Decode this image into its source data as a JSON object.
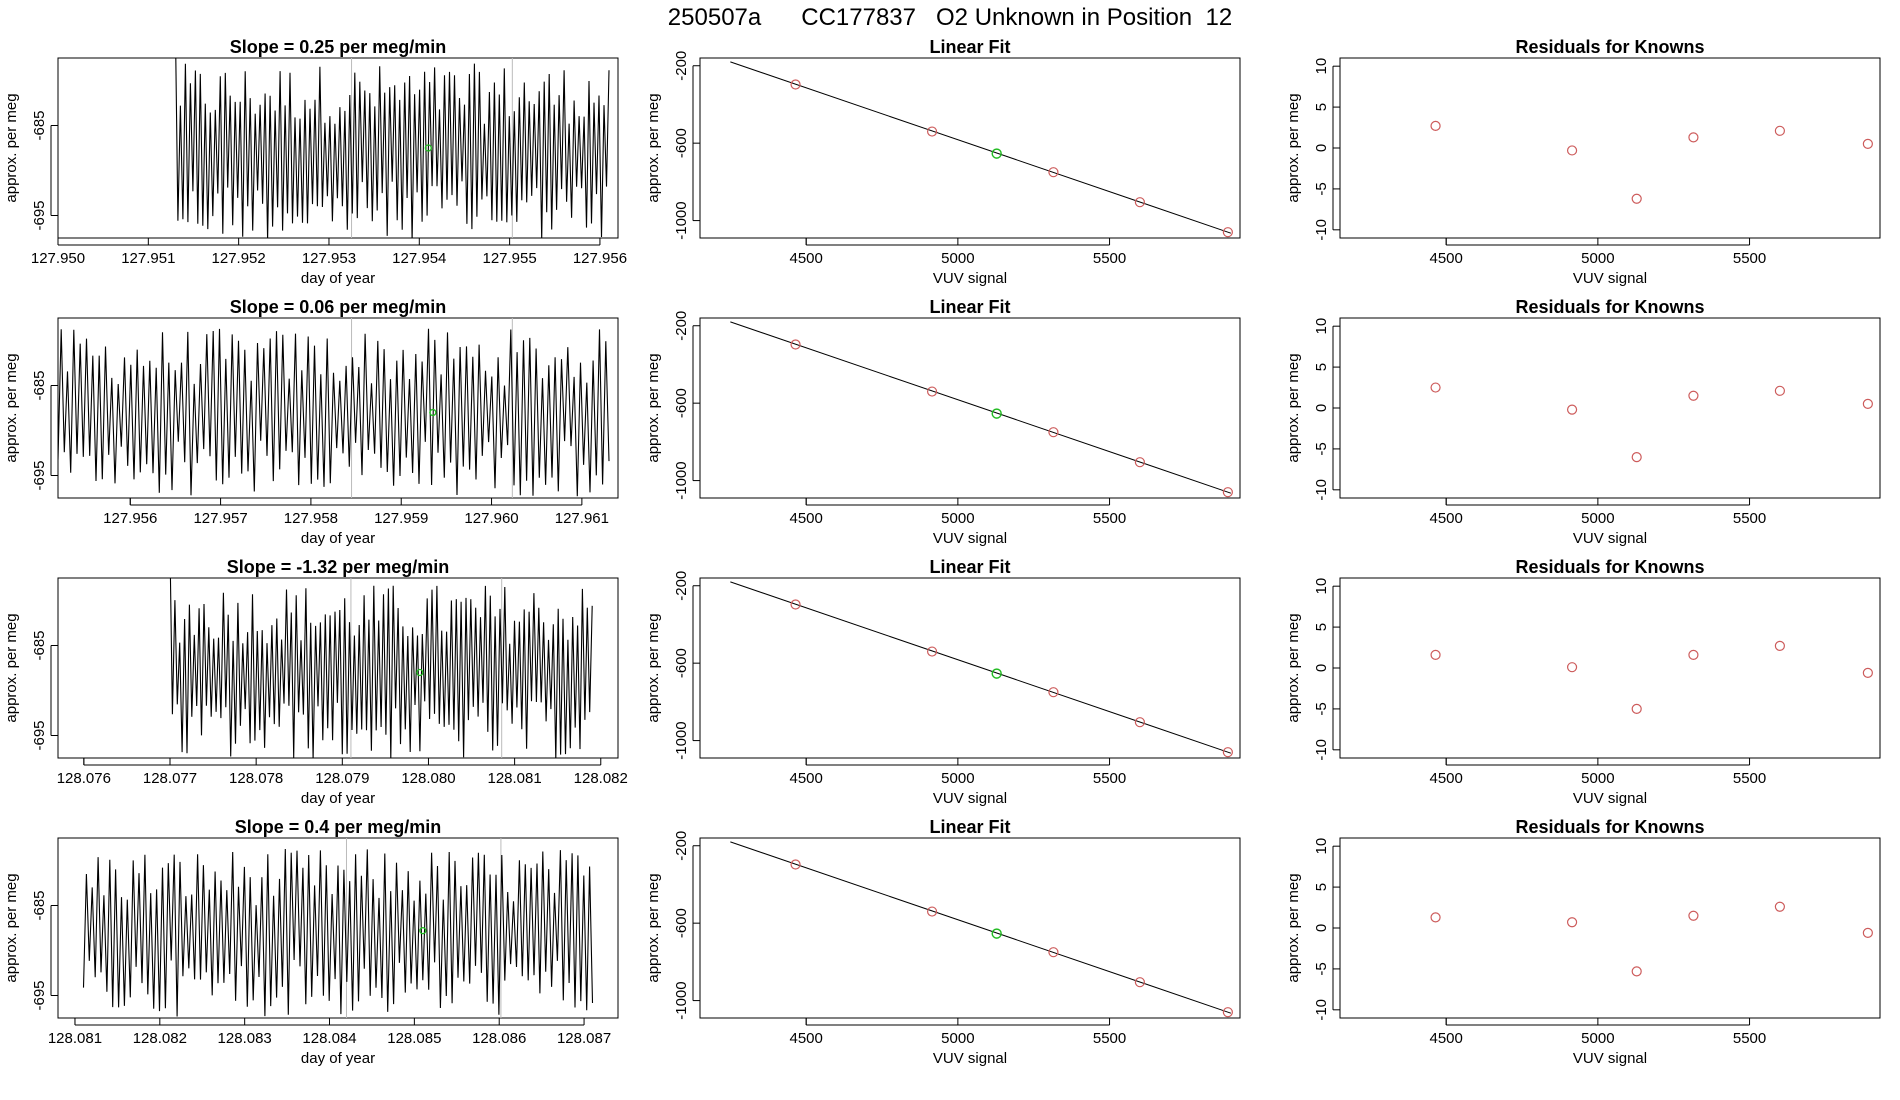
{
  "header": {
    "run_id": "250507a",
    "cylinder": "CC177837",
    "description": "O2 Unknown in Position  12"
  },
  "colors": {
    "trace": "#000000",
    "known_points": "#cd5c5c",
    "unknown_point": "#22bb22",
    "reference_lines": "#bbbbbb"
  },
  "chart_data": [
    {
      "type": "line",
      "row": 0,
      "title": "Slope =  0.25  per meg/min",
      "xlabel": "day of year",
      "ylabel": "approx. per meg",
      "xlim": [
        127.95,
        127.9562
      ],
      "ylim": [
        -697.5,
        -677.5
      ],
      "xticks": [
        "127.950",
        "127.951",
        "127.952",
        "127.953",
        "127.954",
        "127.955",
        "127.956"
      ],
      "xtick_values": [
        127.95,
        127.951,
        127.952,
        127.953,
        127.954,
        127.955,
        127.956
      ],
      "yticks": [
        "-695",
        "-685"
      ],
      "ytick_values": [
        -695,
        -685
      ],
      "trace_start": 127.9513,
      "trace_end": 127.9561,
      "trace_center": -688,
      "trace_amplitude": 9,
      "trace_start_high": true,
      "ref_lines": [
        127.95325,
        127.95503
      ],
      "marker": {
        "x": 127.9541,
        "y": -687.5
      }
    },
    {
      "type": "scatter",
      "row": 0,
      "title": "Linear Fit",
      "xlabel": "VUV signal",
      "ylabel": "approx. per meg",
      "xlim": [
        4150,
        5930
      ],
      "ylim": [
        -1090,
        -160
      ],
      "xticks": [
        "4500",
        "5000",
        "5500"
      ],
      "xtick_values": [
        4500,
        5000,
        5500
      ],
      "yticks": [
        "-200",
        "-600",
        "-1000"
      ],
      "ytick_values": [
        -200,
        -600,
        -1000
      ],
      "fit_line": [
        [
          4250,
          -180
        ],
        [
          5900,
          -1065
        ]
      ],
      "knowns": [
        {
          "x": 4465,
          "y": -297
        },
        {
          "x": 4915,
          "y": -540
        },
        {
          "x": 5315,
          "y": -750
        },
        {
          "x": 5600,
          "y": -905
        },
        {
          "x": 5890,
          "y": -1060
        }
      ],
      "unknown": {
        "x": 5128,
        "y": -654
      }
    },
    {
      "type": "scatter",
      "row": 0,
      "title": "Residuals for Knowns",
      "xlabel": "VUV signal",
      "ylabel": "approx. per meg",
      "xlim": [
        4150,
        5930
      ],
      "ylim": [
        -11,
        11
      ],
      "xticks": [
        "4500",
        "5000",
        "5500"
      ],
      "xtick_values": [
        4500,
        5000,
        5500
      ],
      "yticks": [
        "-10",
        "-5",
        "0",
        "5",
        "10"
      ],
      "ytick_values": [
        -10,
        -5,
        0,
        5,
        10
      ],
      "points": [
        {
          "x": 4465,
          "y": 2.7
        },
        {
          "x": 4915,
          "y": -0.3
        },
        {
          "x": 5128,
          "y": -6.2
        },
        {
          "x": 5315,
          "y": 1.3
        },
        {
          "x": 5600,
          "y": 2.1
        },
        {
          "x": 5890,
          "y": 0.5
        }
      ]
    },
    {
      "type": "line",
      "row": 1,
      "title": "Slope =  0.06  per meg/min",
      "xlabel": "day of year",
      "ylabel": "approx. per meg",
      "xlim": [
        127.9552,
        127.9614
      ],
      "ylim": [
        -697.5,
        -677.5
      ],
      "xticks": [
        "127.956",
        "127.957",
        "127.958",
        "127.959",
        "127.960",
        "127.961"
      ],
      "xtick_values": [
        127.956,
        127.957,
        127.958,
        127.959,
        127.96,
        127.961
      ],
      "yticks": [
        "-695",
        "-685"
      ],
      "ytick_values": [
        -695,
        -685
      ],
      "trace_start": 127.9552,
      "trace_end": 127.9613,
      "trace_center": -688,
      "trace_amplitude": 8.5,
      "trace_start_high": false,
      "ref_lines": [
        127.95845,
        127.96023
      ],
      "marker": {
        "x": 127.95935,
        "y": -688
      }
    },
    {
      "type": "scatter",
      "row": 1,
      "title": "Linear Fit",
      "xlabel": "VUV signal",
      "ylabel": "approx. per meg",
      "xlim": [
        4150,
        5930
      ],
      "ylim": [
        -1090,
        -160
      ],
      "xticks": [
        "4500",
        "5000",
        "5500"
      ],
      "xtick_values": [
        4500,
        5000,
        5500
      ],
      "yticks": [
        "-200",
        "-600",
        "-1000"
      ],
      "ytick_values": [
        -200,
        -600,
        -1000
      ],
      "fit_line": [
        [
          4250,
          -180
        ],
        [
          5900,
          -1065
        ]
      ],
      "knowns": [
        {
          "x": 4465,
          "y": -297
        },
        {
          "x": 4915,
          "y": -540
        },
        {
          "x": 5315,
          "y": -750
        },
        {
          "x": 5600,
          "y": -905
        },
        {
          "x": 5890,
          "y": -1060
        }
      ],
      "unknown": {
        "x": 5128,
        "y": -654
      }
    },
    {
      "type": "scatter",
      "row": 1,
      "title": "Residuals for Knowns",
      "xlabel": "VUV signal",
      "ylabel": "approx. per meg",
      "xlim": [
        4150,
        5930
      ],
      "ylim": [
        -11,
        11
      ],
      "xticks": [
        "4500",
        "5000",
        "5500"
      ],
      "xtick_values": [
        4500,
        5000,
        5500
      ],
      "yticks": [
        "-10",
        "-5",
        "0",
        "5",
        "10"
      ],
      "ytick_values": [
        -10,
        -5,
        0,
        5,
        10
      ],
      "points": [
        {
          "x": 4465,
          "y": 2.5
        },
        {
          "x": 4915,
          "y": -0.2
        },
        {
          "x": 5128,
          "y": -6.0
        },
        {
          "x": 5315,
          "y": 1.5
        },
        {
          "x": 5600,
          "y": 2.1
        },
        {
          "x": 5890,
          "y": 0.5
        }
      ]
    },
    {
      "type": "line",
      "row": 2,
      "title": "Slope =  -1.32  per meg/min",
      "xlabel": "day of year",
      "ylabel": "approx. per meg",
      "xlim": [
        128.0757,
        128.0822
      ],
      "ylim": [
        -697.5,
        -677.5
      ],
      "xticks": [
        "128.076",
        "128.077",
        "128.078",
        "128.079",
        "128.080",
        "128.081",
        "128.082"
      ],
      "xtick_values": [
        128.076,
        128.077,
        128.078,
        128.079,
        128.08,
        128.081,
        128.082
      ],
      "yticks": [
        "-695",
        "-685"
      ],
      "ytick_values": [
        -695,
        -685
      ],
      "trace_start": 128.077,
      "trace_end": 128.0819,
      "trace_center": -688,
      "trace_amplitude": 9,
      "trace_start_high": true,
      "ref_lines": [
        128.0791,
        128.08085
      ],
      "marker": {
        "x": 128.0799,
        "y": -688
      }
    },
    {
      "type": "scatter",
      "row": 2,
      "title": "Linear Fit",
      "xlabel": "VUV signal",
      "ylabel": "approx. per meg",
      "xlim": [
        4150,
        5930
      ],
      "ylim": [
        -1090,
        -160
      ],
      "xticks": [
        "4500",
        "5000",
        "5500"
      ],
      "xtick_values": [
        4500,
        5000,
        5500
      ],
      "yticks": [
        "-200",
        "-600",
        "-1000"
      ],
      "ytick_values": [
        -200,
        -600,
        -1000
      ],
      "fit_line": [
        [
          4250,
          -180
        ],
        [
          5900,
          -1065
        ]
      ],
      "knowns": [
        {
          "x": 4465,
          "y": -297
        },
        {
          "x": 4915,
          "y": -540
        },
        {
          "x": 5315,
          "y": -750
        },
        {
          "x": 5600,
          "y": -905
        },
        {
          "x": 5890,
          "y": -1060
        }
      ],
      "unknown": {
        "x": 5128,
        "y": -654
      }
    },
    {
      "type": "scatter",
      "row": 2,
      "title": "Residuals for Knowns",
      "xlabel": "VUV signal",
      "ylabel": "approx. per meg",
      "xlim": [
        4150,
        5930
      ],
      "ylim": [
        -11,
        11
      ],
      "xticks": [
        "4500",
        "5000",
        "5500"
      ],
      "xtick_values": [
        4500,
        5000,
        5500
      ],
      "yticks": [
        "-10",
        "-5",
        "0",
        "5",
        "10"
      ],
      "ytick_values": [
        -10,
        -5,
        0,
        5,
        10
      ],
      "points": [
        {
          "x": 4465,
          "y": 1.6
        },
        {
          "x": 4915,
          "y": 0.1
        },
        {
          "x": 5128,
          "y": -5.0
        },
        {
          "x": 5315,
          "y": 1.6
        },
        {
          "x": 5600,
          "y": 2.7
        },
        {
          "x": 5890,
          "y": -0.6
        }
      ]
    },
    {
      "type": "line",
      "row": 3,
      "title": "Slope =  0.4  per meg/min",
      "xlabel": "day of year",
      "ylabel": "approx. per meg",
      "xlim": [
        128.0808,
        128.0874
      ],
      "ylim": [
        -697.5,
        -677.5
      ],
      "xticks": [
        "128.081",
        "128.082",
        "128.083",
        "128.084",
        "128.085",
        "128.086",
        "128.087"
      ],
      "xtick_values": [
        128.081,
        128.082,
        128.083,
        128.084,
        128.085,
        128.086,
        128.087
      ],
      "yticks": [
        "-695",
        "-685"
      ],
      "ytick_values": [
        -695,
        -685
      ],
      "trace_start": 128.0811,
      "trace_end": 128.0871,
      "trace_center": -688,
      "trace_amplitude": 8.5,
      "trace_start_high": false,
      "ref_lines": [
        128.0842,
        128.08602
      ],
      "marker": {
        "x": 128.0851,
        "y": -687.8
      }
    },
    {
      "type": "scatter",
      "row": 3,
      "title": "Linear Fit",
      "xlabel": "VUV signal",
      "ylabel": "approx. per meg",
      "xlim": [
        4150,
        5930
      ],
      "ylim": [
        -1090,
        -160
      ],
      "xticks": [
        "4500",
        "5000",
        "5500"
      ],
      "xtick_values": [
        4500,
        5000,
        5500
      ],
      "yticks": [
        "-200",
        "-600",
        "-1000"
      ],
      "ytick_values": [
        -200,
        -600,
        -1000
      ],
      "fit_line": [
        [
          4250,
          -180
        ],
        [
          5900,
          -1065
        ]
      ],
      "knowns": [
        {
          "x": 4465,
          "y": -297
        },
        {
          "x": 4915,
          "y": -540
        },
        {
          "x": 5315,
          "y": -750
        },
        {
          "x": 5600,
          "y": -905
        },
        {
          "x": 5890,
          "y": -1060
        }
      ],
      "unknown": {
        "x": 5128,
        "y": -654
      }
    },
    {
      "type": "scatter",
      "row": 3,
      "title": "Residuals for Knowns",
      "xlabel": "VUV signal",
      "ylabel": "approx. per meg",
      "xlim": [
        4150,
        5930
      ],
      "ylim": [
        -11,
        11
      ],
      "xticks": [
        "4500",
        "5000",
        "5500"
      ],
      "xtick_values": [
        4500,
        5000,
        5500
      ],
      "yticks": [
        "-10",
        "-5",
        "0",
        "5",
        "10"
      ],
      "ytick_values": [
        -10,
        -5,
        0,
        5,
        10
      ],
      "points": [
        {
          "x": 4465,
          "y": 1.3
        },
        {
          "x": 4915,
          "y": 0.7
        },
        {
          "x": 5128,
          "y": -5.3
        },
        {
          "x": 5315,
          "y": 1.5
        },
        {
          "x": 5600,
          "y": 2.6
        },
        {
          "x": 5890,
          "y": -0.6
        }
      ]
    }
  ]
}
